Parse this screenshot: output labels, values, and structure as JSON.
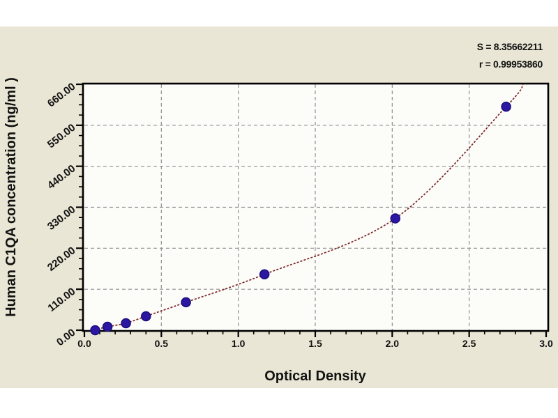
{
  "colors": {
    "page_background": "#ffffff",
    "panel_background": "#eae6d5",
    "plot_background": "#fcfcf9",
    "frame": "#000000",
    "grid": "#8f8f8f",
    "curve": "#7a2424",
    "marker_fill": "#2c17a3",
    "marker_edge": "#1a0d7a",
    "text": "#121212"
  },
  "chart_data": {
    "type": "scatter",
    "title": "",
    "xlabel": "Optical Density",
    "ylabel": "Human C1QA concentration (ng/ml )",
    "xlim": [
      0,
      3
    ],
    "ylim": [
      0,
      660
    ],
    "x_tick_values": [
      0,
      0.5,
      1,
      1.5,
      2,
      2.5,
      3
    ],
    "x_tick_labels": [
      "0.0",
      "0.5",
      "1.0",
      "1.5",
      "2.0",
      "2.5",
      "3.0"
    ],
    "x_minor_tick_step": 0.1,
    "y_tick_values": [
      0,
      110,
      220,
      330,
      440,
      550,
      660
    ],
    "y_tick_labels": [
      "0.00",
      "110.00",
      "220.00",
      "330.00",
      "440.00",
      "550.00",
      "660.00"
    ],
    "y_minor_tick_step": 27.5,
    "grid": {
      "show": true,
      "style": "dashed",
      "which": "major",
      "color": "#8f8f8f"
    },
    "legend": "none",
    "marker_size": 6.5,
    "series": [
      {
        "name": "standard-points",
        "type": "scatter",
        "color": "#2c17a3",
        "x": [
          0.07,
          0.15,
          0.27,
          0.4,
          0.66,
          1.17,
          2.02,
          2.74
        ],
        "y": [
          0,
          9.4,
          18.8,
          37.5,
          75,
          150,
          300,
          600
        ]
      },
      {
        "name": "fit-curve",
        "type": "line",
        "style": "dashed",
        "color": "#7a2424",
        "x": [
          0.04,
          0.07,
          0.15,
          0.27,
          0.4,
          0.66,
          1.17,
          2.02,
          2.74,
          2.85
        ],
        "y": [
          0,
          1.5,
          9.4,
          18.8,
          37.5,
          75,
          150,
          300,
          600,
          660
        ]
      }
    ],
    "annotations": [
      {
        "text": "S = 8.35662211",
        "position": "top-right"
      },
      {
        "text": "r = 0.99953860",
        "position": "top-right"
      }
    ]
  }
}
